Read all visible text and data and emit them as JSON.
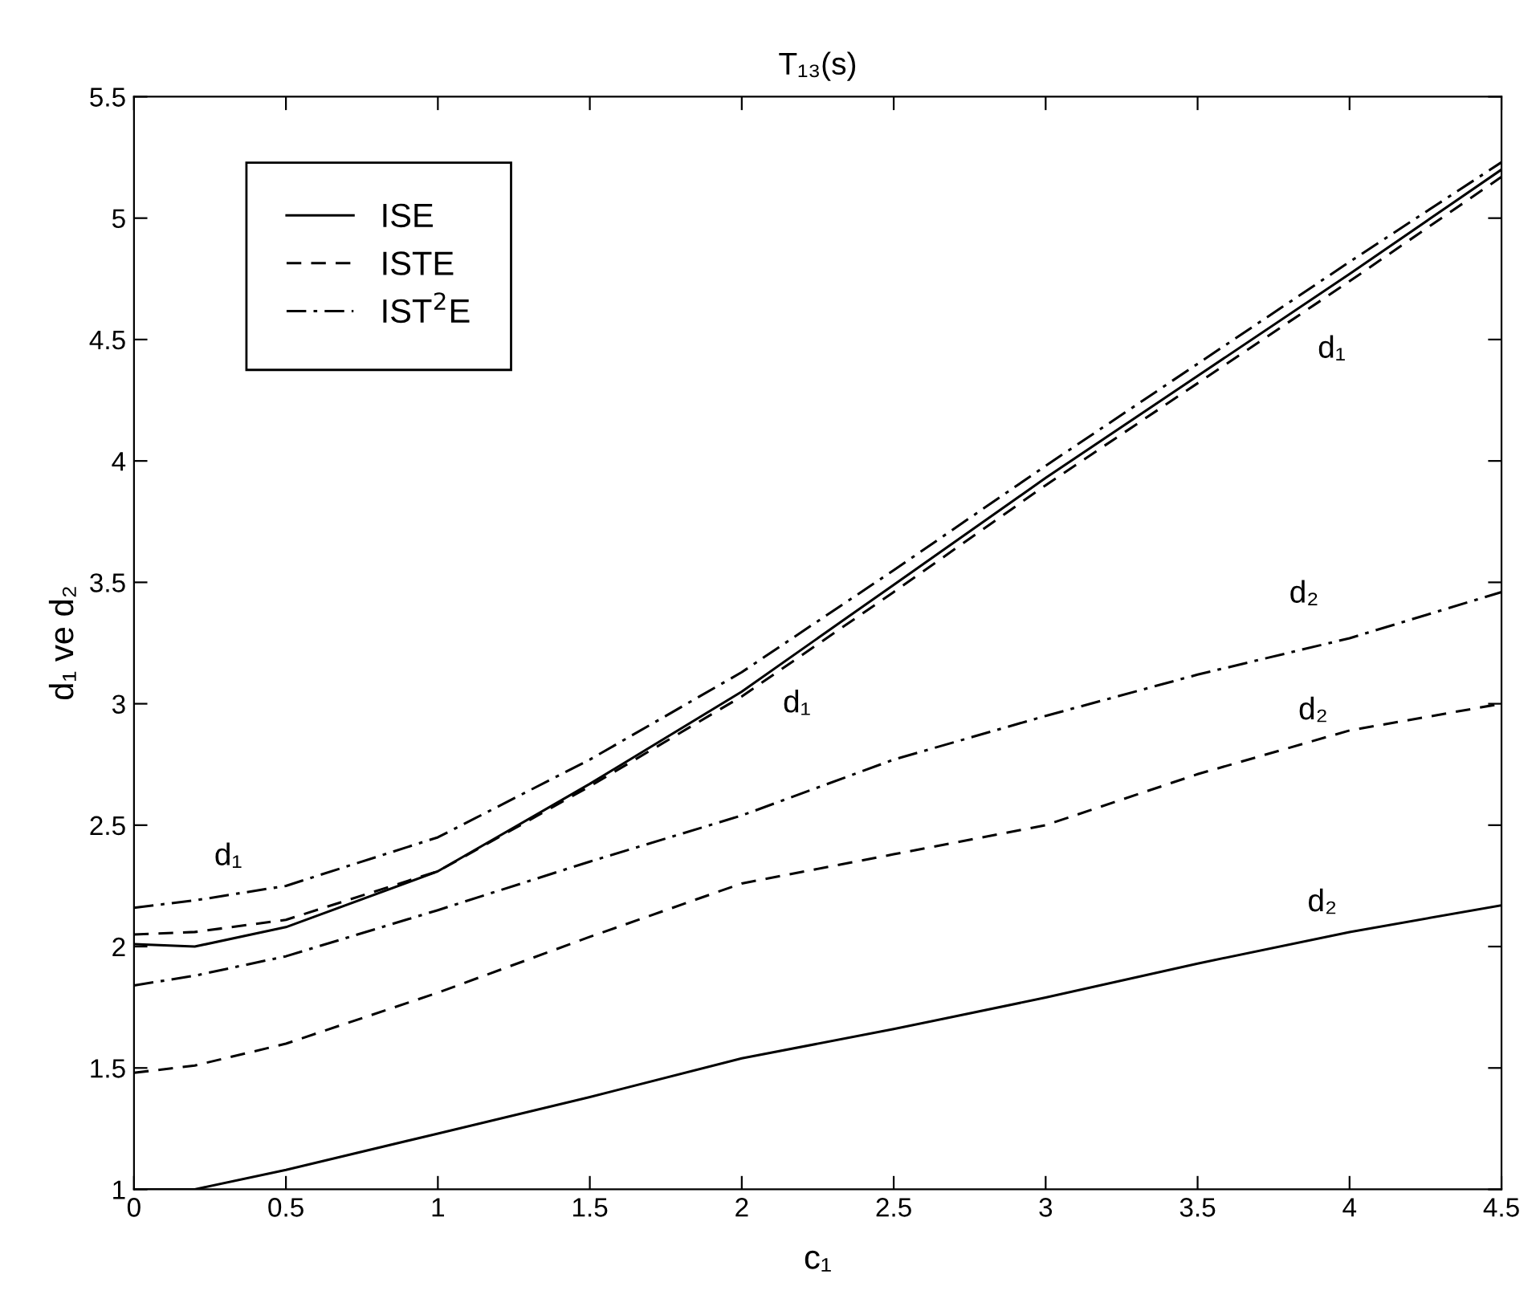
{
  "chart_data": {
    "type": "line",
    "title": "T₁₃(s)",
    "xlabel": "c₁",
    "ylabel": "d₁ ve d₂",
    "x": [
      0,
      0.2,
      0.5,
      1,
      1.5,
      2,
      2.5,
      3,
      3.5,
      4,
      4.5
    ],
    "series": [
      {
        "name": "ISE",
        "color": "#000000",
        "line_style": "solid",
        "values": [
          2.01,
          2.0,
          2.08,
          2.31,
          2.67,
          3.05,
          3.49,
          3.93,
          4.35,
          4.77,
          5.2
        ]
      },
      {
        "name": "ISTE",
        "color": "#000000",
        "line_style": "dashed",
        "values": [
          2.05,
          2.06,
          2.11,
          2.31,
          2.66,
          3.03,
          3.46,
          3.9,
          4.32,
          4.74,
          5.17
        ]
      },
      {
        "name": "IST$^{2}$E",
        "color": "#000000",
        "line_style": "dashdot",
        "values": [
          2.16,
          2.19,
          2.25,
          2.45,
          2.77,
          3.13,
          3.55,
          3.98,
          4.4,
          4.82,
          5.23
        ]
      },
      {
        "color": "#000000",
        "line_style": "solid",
        "values": [
          1.0,
          1.0,
          1.08,
          1.23,
          1.38,
          1.54,
          1.66,
          1.79,
          1.93,
          2.06,
          2.17
        ]
      },
      {
        "color": "#000000",
        "line_style": "dashed",
        "values": [
          1.48,
          1.51,
          1.6,
          1.81,
          2.04,
          2.26,
          2.38,
          2.5,
          2.71,
          2.89,
          3.0
        ]
      },
      {
        "color": "#000000",
        "line_style": "dashdot",
        "values": [
          1.84,
          1.88,
          1.96,
          2.15,
          2.35,
          2.54,
          2.77,
          2.95,
          3.12,
          3.27,
          3.46
        ]
      }
    ],
    "annotations": [
      {
        "text": "d₁",
        "x": 0.31,
        "y": 2.21
      },
      {
        "text": "d₁",
        "x": 2.16,
        "y": 3.17
      },
      {
        "text": "d₁",
        "x": 3.92,
        "y": 4.67
      },
      {
        "text": "d₂",
        "x": 3.85,
        "y": 3.225
      },
      {
        "text": "d₂",
        "x": 3.88,
        "y": 2.85
      },
      {
        "text": "d₂",
        "x": 3.91,
        "y": 2.04
      }
    ],
    "xlim": [
      0,
      4.5
    ],
    "xticks": [
      0,
      0.5,
      1,
      1.5,
      2,
      2.5,
      3,
      3.5,
      4,
      4.5
    ],
    "ylim": [
      1,
      5.5
    ],
    "yticks": [
      1,
      1.5,
      2,
      2.5,
      3,
      3.5,
      4,
      4.5,
      5,
      5.5
    ],
    "grid": false,
    "legend": "top left"
  }
}
